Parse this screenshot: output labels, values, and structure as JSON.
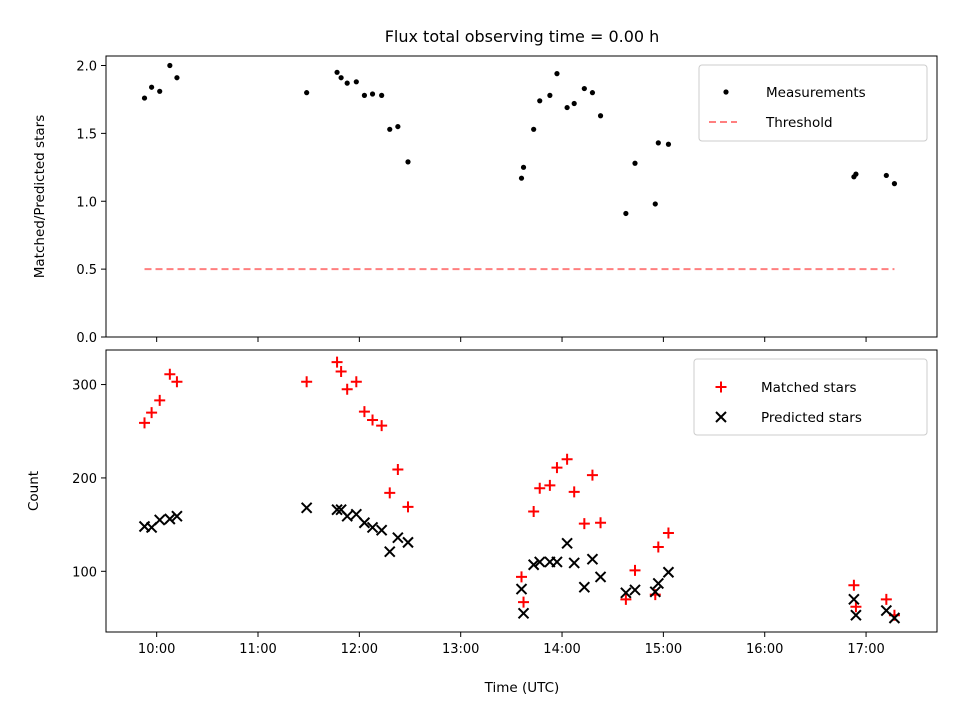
{
  "chart_data": {
    "title": "Flux total observing time = 0.00 h",
    "xlabel": "Time (UTC)",
    "x_unit": "hours",
    "xlim": [
      9.5,
      17.7
    ],
    "x_ticks": [
      10,
      11,
      12,
      13,
      14,
      15,
      16,
      17
    ],
    "x_tick_labels": [
      "10:00",
      "11:00",
      "12:00",
      "13:00",
      "14:00",
      "15:00",
      "16:00",
      "17:00"
    ],
    "panels": [
      {
        "type": "scatter",
        "ylabel": "Matched/Predicted stars",
        "ylim": [
          0,
          2.07
        ],
        "y_ticks": [
          0.0,
          0.5,
          1.0,
          1.5,
          2.0
        ],
        "y_tick_labels": [
          "0.0",
          "0.5",
          "1.0",
          "1.5",
          "2.0"
        ],
        "legend_position": "upper right",
        "series": [
          {
            "name": "Measurements",
            "marker": "dot",
            "color": "#000000",
            "points": [
              [
                9.88,
                1.76
              ],
              [
                9.95,
                1.84
              ],
              [
                10.03,
                1.81
              ],
              [
                10.13,
                2.0
              ],
              [
                10.2,
                1.91
              ],
              [
                11.48,
                1.8
              ],
              [
                11.78,
                1.95
              ],
              [
                11.82,
                1.91
              ],
              [
                11.88,
                1.87
              ],
              [
                11.97,
                1.88
              ],
              [
                12.05,
                1.78
              ],
              [
                12.13,
                1.79
              ],
              [
                12.22,
                1.78
              ],
              [
                12.3,
                1.53
              ],
              [
                12.38,
                1.55
              ],
              [
                12.48,
                1.29
              ],
              [
                13.6,
                1.17
              ],
              [
                13.62,
                1.25
              ],
              [
                13.72,
                1.53
              ],
              [
                13.78,
                1.74
              ],
              [
                13.88,
                1.78
              ],
              [
                13.95,
                1.94
              ],
              [
                14.05,
                1.69
              ],
              [
                14.12,
                1.72
              ],
              [
                14.22,
                1.83
              ],
              [
                14.3,
                1.8
              ],
              [
                14.38,
                1.63
              ],
              [
                14.63,
                0.91
              ],
              [
                14.72,
                1.28
              ],
              [
                14.92,
                0.98
              ],
              [
                14.95,
                1.43
              ],
              [
                15.05,
                1.42
              ],
              [
                16.88,
                1.18
              ],
              [
                16.9,
                1.2
              ],
              [
                17.2,
                1.19
              ],
              [
                17.28,
                1.13
              ]
            ]
          },
          {
            "name": "Threshold",
            "type": "line",
            "style": "dashed",
            "color": "#ff7f7f",
            "points": [
              [
                9.88,
                0.5
              ],
              [
                17.28,
                0.5
              ]
            ]
          }
        ]
      },
      {
        "type": "scatter",
        "ylabel": "Count",
        "ylim": [
          35,
          337
        ],
        "y_ticks": [
          100,
          200,
          300
        ],
        "y_tick_labels": [
          "100",
          "200",
          "300"
        ],
        "legend_position": "upper right",
        "series": [
          {
            "name": "Matched stars",
            "marker": "plus",
            "color": "#ff0000",
            "points": [
              [
                9.88,
                259
              ],
              [
                9.95,
                270
              ],
              [
                10.03,
                283
              ],
              [
                10.13,
                311
              ],
              [
                10.2,
                303
              ],
              [
                11.48,
                303
              ],
              [
                11.78,
                324
              ],
              [
                11.82,
                314
              ],
              [
                11.88,
                295
              ],
              [
                11.97,
                303
              ],
              [
                12.05,
                271
              ],
              [
                12.13,
                262
              ],
              [
                12.22,
                256
              ],
              [
                12.3,
                184
              ],
              [
                12.38,
                209
              ],
              [
                12.48,
                169
              ],
              [
                13.6,
                94
              ],
              [
                13.62,
                67
              ],
              [
                13.72,
                164
              ],
              [
                13.78,
                189
              ],
              [
                13.88,
                192
              ],
              [
                13.95,
                211
              ],
              [
                14.05,
                220
              ],
              [
                14.12,
                185
              ],
              [
                14.22,
                151
              ],
              [
                14.3,
                203
              ],
              [
                14.38,
                152
              ],
              [
                14.63,
                70
              ],
              [
                14.72,
                101
              ],
              [
                14.92,
                75
              ],
              [
                14.95,
                126
              ],
              [
                15.05,
                141
              ],
              [
                16.88,
                85
              ],
              [
                16.9,
                62
              ],
              [
                17.2,
                70
              ],
              [
                17.28,
                53
              ]
            ]
          },
          {
            "name": "Predicted stars",
            "marker": "x",
            "color": "#000000",
            "points": [
              [
                9.88,
                148
              ],
              [
                9.95,
                147
              ],
              [
                10.03,
                155
              ],
              [
                10.13,
                156
              ],
              [
                10.2,
                159
              ],
              [
                11.48,
                168
              ],
              [
                11.78,
                166
              ],
              [
                11.82,
                166
              ],
              [
                11.88,
                159
              ],
              [
                11.97,
                161
              ],
              [
                12.05,
                152
              ],
              [
                12.13,
                147
              ],
              [
                12.22,
                144
              ],
              [
                12.3,
                121
              ],
              [
                12.38,
                136
              ],
              [
                12.48,
                131
              ],
              [
                13.6,
                81
              ],
              [
                13.62,
                55
              ],
              [
                13.72,
                107
              ],
              [
                13.78,
                110
              ],
              [
                13.88,
                110
              ],
              [
                13.95,
                110
              ],
              [
                14.05,
                130
              ],
              [
                14.12,
                109
              ],
              [
                14.22,
                83
              ],
              [
                14.3,
                113
              ],
              [
                14.38,
                94
              ],
              [
                14.63,
                77
              ],
              [
                14.72,
                80
              ],
              [
                14.92,
                78
              ],
              [
                14.95,
                87
              ],
              [
                15.05,
                99
              ],
              [
                16.88,
                70
              ],
              [
                16.9,
                53
              ],
              [
                17.2,
                58
              ],
              [
                17.28,
                50
              ]
            ]
          }
        ]
      }
    ]
  }
}
